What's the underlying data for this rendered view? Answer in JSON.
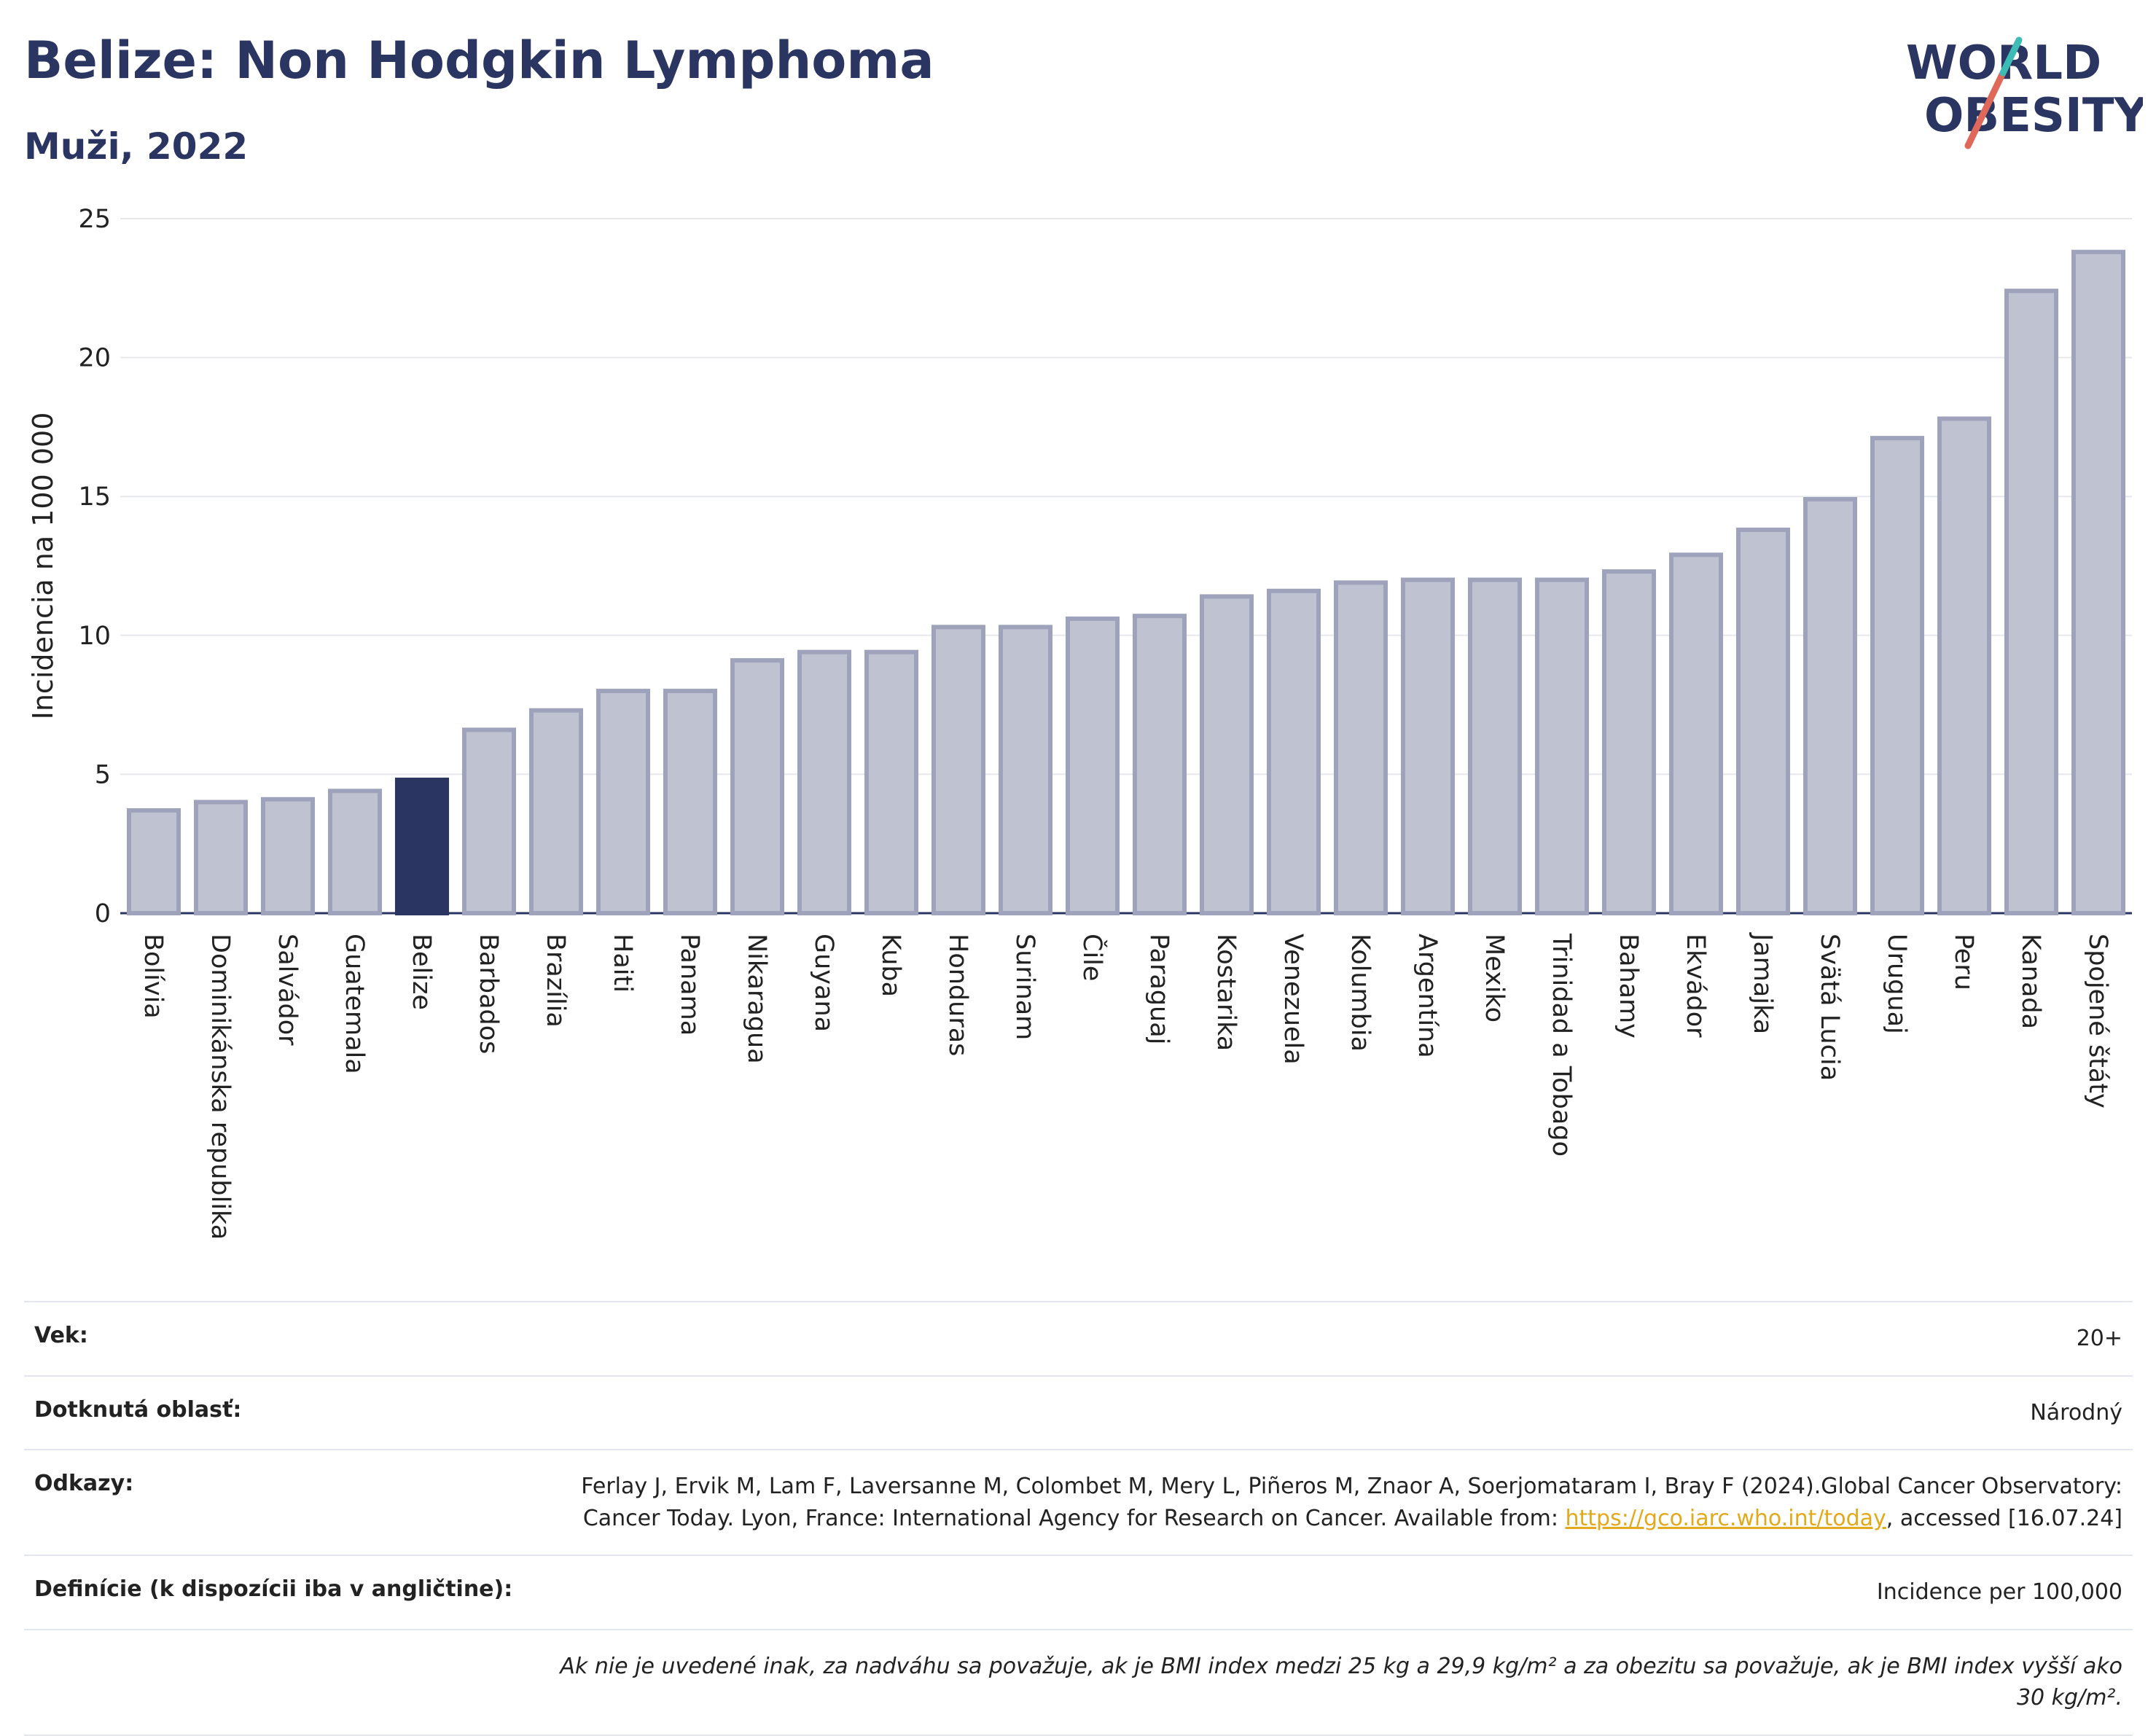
{
  "header": {
    "title": "Belize: Non Hodgkin Lymphoma",
    "subtitle": "Muži, 2022"
  },
  "logo": {
    "line1": "WORLD",
    "line2": "OBESITY",
    "icon": "world-obesity-logo"
  },
  "colors": {
    "bar": "#bec2d1",
    "bar_edge": "#9ea3bb",
    "highlight": "#2b3562",
    "grid": "#e6e8ee"
  },
  "chart_data": {
    "type": "bar",
    "title": "Belize: Non Hodgkin Lymphoma",
    "subtitle": "Muži, 2022",
    "ylabel": "Incidencia na 100 000",
    "xlabel": "",
    "ylim": [
      0,
      25
    ],
    "yticks": [
      0,
      5,
      10,
      15,
      20,
      25
    ],
    "grid": true,
    "highlight": "Belize",
    "categories": [
      "Bolívia",
      "Dominikánska republika",
      "Salvádor",
      "Guatemala",
      "Belize",
      "Barbados",
      "Brazília",
      "Haiti",
      "Panama",
      "Nikaragua",
      "Guyana",
      "Kuba",
      "Honduras",
      "Surinam",
      "Čile",
      "Paraguaj",
      "Kostarika",
      "Venezuela",
      "Kolumbia",
      "Argentína",
      "Mexiko",
      "Trinidad a Tobago",
      "Bahamy",
      "Ekvádor",
      "Jamajka",
      "Svätá Lucia",
      "Uruguaj",
      "Peru",
      "Kanada",
      "Spojené štáty"
    ],
    "values": [
      3.7,
      4.0,
      4.1,
      4.4,
      4.8,
      6.6,
      7.3,
      8.0,
      8.0,
      9.1,
      9.4,
      9.4,
      10.3,
      10.3,
      10.6,
      10.7,
      11.4,
      11.6,
      11.9,
      12.0,
      12.0,
      12.0,
      12.3,
      12.9,
      13.8,
      14.9,
      17.1,
      17.8,
      22.4,
      23.8
    ]
  },
  "meta": {
    "age_label": "Vek:",
    "age_value": "20+",
    "area_label": "Dotknutá oblasť:",
    "area_value": "Národný",
    "refs_label": "Odkazy:",
    "refs_text_before": "Ferlay J, Ervik M, Lam F, Laversanne M, Colombet M, Mery L, Piñeros M, Znaor A, Soerjomataram I, Bray F (2024).Global Cancer Observatory: Cancer Today. Lyon, France: International Agency for Research on Cancer. Available from: ",
    "refs_link": "https://gco.iarc.who.int/today",
    "refs_text_after": ", accessed [16.07.24]",
    "def_label": "Definície (k dispozícii iba v angličtine):",
    "def_value": "Incidence per 100,000",
    "note": "Ak nie je uvedené inak, za nadváhu sa považuje, ak je BMI index medzi 25 kg a 29,9 kg/m² a za obezitu sa považuje, ak je BMI index vyšší ako 30 kg/m²."
  }
}
